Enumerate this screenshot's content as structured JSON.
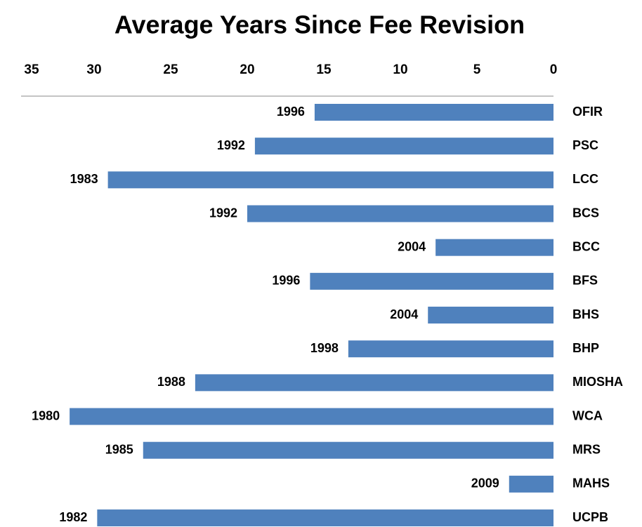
{
  "chart_data": {
    "type": "barh",
    "title": "Average Years Since Fee Revision",
    "categories": [
      "OFIR",
      "PSC",
      "LCC",
      "BCS",
      "BCC",
      "BFS",
      "BHS",
      "BHP",
      "MIOSHA",
      "WCA",
      "MRS",
      "MAHS",
      "UCPB"
    ],
    "values": [
      15.6,
      19.5,
      29.1,
      20.0,
      7.7,
      15.9,
      8.2,
      13.4,
      23.4,
      31.6,
      26.8,
      2.9,
      29.8
    ],
    "year_labels": [
      "1996",
      "1992",
      "1983",
      "1992",
      "2004",
      "1996",
      "2004",
      "1998",
      "1988",
      "1980",
      "1985",
      "2009",
      "1982"
    ],
    "color": "#4f81bd",
    "xlim": [
      35,
      0
    ],
    "xticks": [
      35,
      30,
      25,
      20,
      15,
      10,
      5,
      0
    ]
  }
}
